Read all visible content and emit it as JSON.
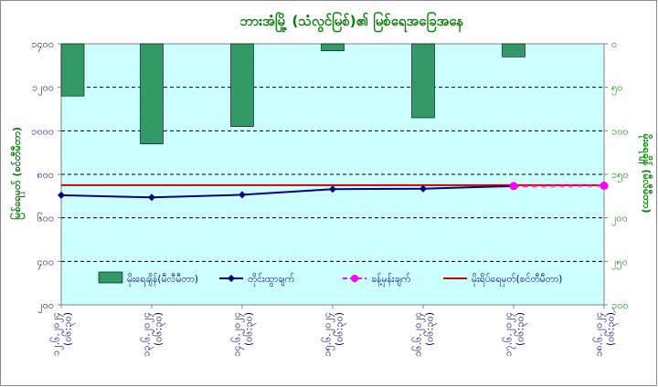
{
  "chart_data": {
    "type": "bar",
    "title": "ဘားအံမြို့ (သံလွင်မြစ်)၏ မြစ်ရေအခြေအနေ",
    "ylabel_left": "မြစ်ရေမှတ် (စင်တီမီတာ)",
    "ylabel_right": "မိုးရေချိန် (မီလီမီတာ)",
    "x": [
      "၁၂.၆.၂၀၂၄\n(၀၆:၃၀)",
      "၁၃.၆.၂၀၂၄\n(၀၆:၃၀)",
      "၁၄.၆.၂၀၂၄\n(၀၆:၃၀)",
      "၁၅.၆.၂၀၂၄\n(၀၆:၃၀)",
      "၁၆.၆.၂၀၂၄\n(၀၆:၃၀)",
      "၁၇.၆.၂၀၂၄\n(၀၆:၃၀)",
      "၁၈.၆.၂၀၂၄\n(၀၆:၃၀)"
    ],
    "yticks_left": [
      "၂၀၀",
      "၄၀၀",
      "၆၀၀",
      "၈၀၀",
      "၁၀၀၀",
      "၁၂၀၀",
      "၁၄၀၀"
    ],
    "yticks_right": [
      "၀",
      "၅၀",
      "၁၀၀",
      "၁၅၀",
      "၂၀၀",
      "၂၅၀",
      "၃၀၀"
    ],
    "ylim_left": [
      200,
      1400
    ],
    "ylim_right": [
      300,
      0
    ],
    "grid": true,
    "legend_position": "bottom-inside",
    "series": [
      {
        "name": "မိုးရေချိန်(မီလီမီတာ)",
        "kind": "bar",
        "axis": "right",
        "color": "#339966",
        "values": [
          60,
          115,
          95,
          8,
          85,
          15,
          null
        ]
      },
      {
        "name": "တိုင်းထွာချက်",
        "kind": "line",
        "axis": "left",
        "color": "#000080",
        "marker": "diamond",
        "values": [
          704,
          694,
          706,
          732,
          734,
          746,
          null
        ]
      },
      {
        "name": "ခန့်မှန်းချက်",
        "kind": "line",
        "axis": "left",
        "color": "#ff00ff",
        "dash": true,
        "marker": "circle",
        "values": [
          null,
          null,
          null,
          null,
          null,
          746,
          748
        ]
      },
      {
        "name": "မိုးရိပ်ရေမှတ်(စင်တီမီတာ)",
        "kind": "hline",
        "axis": "left",
        "color": "#cc0000",
        "value": 750
      }
    ]
  }
}
